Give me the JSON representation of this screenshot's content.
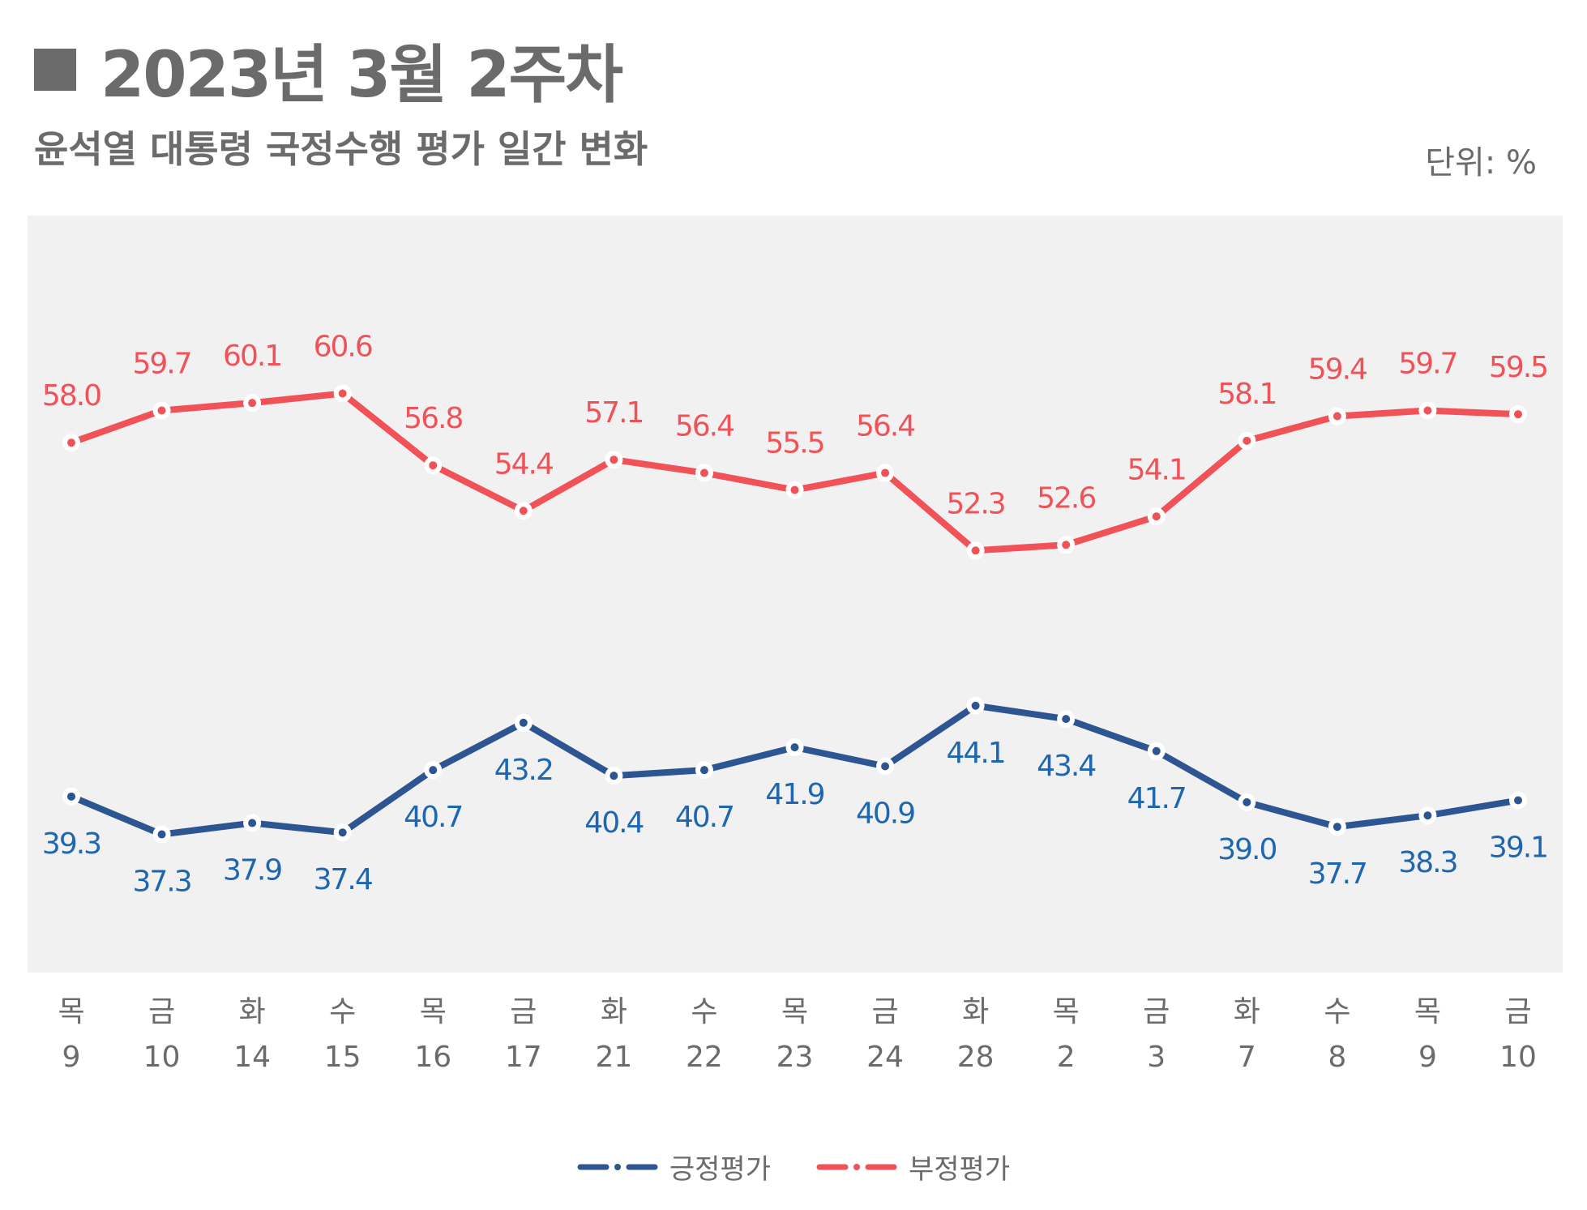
{
  "header": {
    "title": "2023년 3월 2주차",
    "subtitle": "윤석열 대통령 국정수행 평가 일간 변화",
    "unit": "단위: %"
  },
  "colors": {
    "positive": "#2d5592",
    "positive_label": "#1f66b0",
    "negative": "#f05258",
    "plot_bg": "#f1f1f1",
    "axis_text": "#6b6b6b"
  },
  "chart_data": {
    "type": "line",
    "title": "윤석열 대통령 국정수행 평가 일간 변화",
    "unit": "%",
    "ylim": [
      30,
      70
    ],
    "categories": [
      {
        "day": "목",
        "date": "9"
      },
      {
        "day": "금",
        "date": "10"
      },
      {
        "day": "화",
        "date": "14"
      },
      {
        "day": "수",
        "date": "15"
      },
      {
        "day": "목",
        "date": "16"
      },
      {
        "day": "금",
        "date": "17"
      },
      {
        "day": "화",
        "date": "21"
      },
      {
        "day": "수",
        "date": "22"
      },
      {
        "day": "목",
        "date": "23"
      },
      {
        "day": "금",
        "date": "24"
      },
      {
        "day": "화",
        "date": "28"
      },
      {
        "day": "목",
        "date": "2"
      },
      {
        "day": "금",
        "date": "3"
      },
      {
        "day": "화",
        "date": "7"
      },
      {
        "day": "수",
        "date": "8"
      },
      {
        "day": "목",
        "date": "9"
      },
      {
        "day": "금",
        "date": "10"
      }
    ],
    "series": [
      {
        "name": "긍정평가",
        "values": [
          39.3,
          37.3,
          37.9,
          37.4,
          40.7,
          43.2,
          40.4,
          40.7,
          41.9,
          40.9,
          44.1,
          43.4,
          41.7,
          39.0,
          37.7,
          38.3,
          39.1
        ],
        "labels": [
          "39.3",
          "37.3",
          "37.9",
          "37.4",
          "40.7",
          "43.2",
          "40.4",
          "40.7",
          "41.9",
          "40.9",
          "44.1",
          "43.4",
          "41.7",
          "39.0",
          "37.7",
          "38.3",
          "39.1"
        ],
        "label_pos": [
          "below",
          "below",
          "below",
          "below",
          "below",
          "below",
          "below",
          "below",
          "below",
          "below",
          "below",
          "below",
          "below",
          "below",
          "below",
          "below",
          "below"
        ]
      },
      {
        "name": "부정평가",
        "values": [
          58.0,
          59.7,
          60.1,
          60.6,
          56.8,
          54.4,
          57.1,
          56.4,
          55.5,
          56.4,
          52.3,
          52.6,
          54.1,
          58.1,
          59.4,
          59.7,
          59.5
        ],
        "labels": [
          "58.0",
          "59.7",
          "60.1",
          "60.6",
          "56.8",
          "54.4",
          "57.1",
          "56.4",
          "55.5",
          "56.4",
          "52.3",
          "52.6",
          "54.1",
          "58.1",
          "59.4",
          "59.7",
          "59.5"
        ],
        "label_pos": [
          "above",
          "above",
          "above",
          "above",
          "above",
          "above",
          "above",
          "above",
          "above",
          "above",
          "above",
          "above",
          "above",
          "above",
          "above",
          "above",
          "above"
        ]
      }
    ],
    "legend": [
      "긍정평가",
      "부정평가"
    ],
    "legend_position": "bottom-center",
    "grid": false
  }
}
